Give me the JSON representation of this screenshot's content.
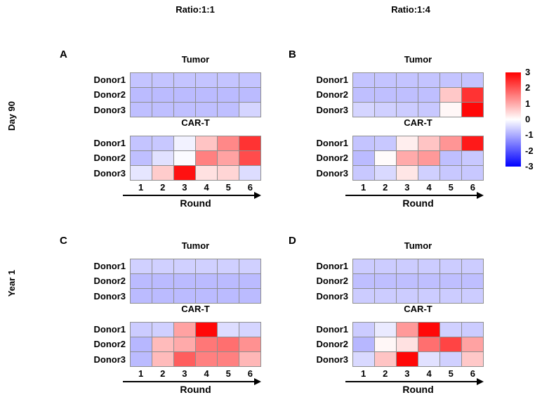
{
  "headers": {
    "col1": "Ratio:1:1",
    "col2": "Ratio:1:4"
  },
  "row_labels": {
    "top": "Day 90",
    "bottom": "Year 1"
  },
  "colorbar": {
    "ticks": [
      "3",
      "2",
      "1",
      "0",
      "-1",
      "-2",
      "-3"
    ],
    "top_color": "#ff0000",
    "mid_color": "#ffffff",
    "bottom_color": "#0000ff"
  },
  "chart_data": {
    "type": "heatmap",
    "colormap": "blue-white-red",
    "value_range": [
      -3,
      3
    ],
    "x": [
      "1",
      "2",
      "3",
      "4",
      "5",
      "6"
    ],
    "xlabel": "Round",
    "row_categories": [
      "Donor1",
      "Donor2",
      "Donor3"
    ],
    "colorbar_ticks": [
      3,
      2,
      1,
      0,
      -1,
      -2,
      -3
    ],
    "panels": [
      {
        "id": "A",
        "row_group": "Day 90",
        "col_group": "Ratio:1:1",
        "heatmaps": [
          {
            "title": "Tumor",
            "rows": [
              [
                -0.7,
                -0.7,
                -0.7,
                -0.7,
                -0.7,
                -0.7
              ],
              [
                -0.8,
                -0.8,
                -0.8,
                -0.8,
                -0.8,
                -0.8
              ],
              [
                -0.75,
                -0.75,
                -0.75,
                -0.75,
                -0.75,
                -0.5
              ]
            ]
          },
          {
            "title": "CAR-T",
            "rows": [
              [
                -0.7,
                -0.65,
                -0.15,
                0.7,
                1.4,
                2.4
              ],
              [
                -0.75,
                -0.35,
                -0.05,
                1.5,
                1.1,
                2.1
              ],
              [
                -0.3,
                0.6,
                2.8,
                0.35,
                0.5,
                -0.4
              ]
            ]
          }
        ]
      },
      {
        "id": "B",
        "row_group": "Day 90",
        "col_group": "Ratio:1:4",
        "heatmaps": [
          {
            "title": "Tumor",
            "rows": [
              [
                -0.7,
                -0.7,
                -0.7,
                -0.7,
                -0.7,
                -0.7
              ],
              [
                -0.75,
                -0.75,
                -0.75,
                -0.75,
                0.65,
                2.4
              ],
              [
                -0.5,
                -0.55,
                -0.6,
                -0.65,
                0.1,
                2.9
              ]
            ]
          },
          {
            "title": "CAR-T",
            "rows": [
              [
                -0.7,
                -0.65,
                0.2,
                0.7,
                1.25,
                2.7
              ],
              [
                -0.8,
                0.05,
                1.0,
                1.2,
                -0.75,
                -0.65
              ],
              [
                -0.65,
                -0.45,
                0.3,
                -0.55,
                -0.65,
                -0.65
              ]
            ]
          }
        ]
      },
      {
        "id": "C",
        "row_group": "Year 1",
        "col_group": "Ratio:1:1",
        "heatmaps": [
          {
            "title": "Tumor",
            "rows": [
              [
                -0.55,
                -0.55,
                -0.55,
                -0.55,
                -0.55,
                -0.55
              ],
              [
                -0.8,
                -0.8,
                -0.8,
                -0.8,
                -0.8,
                -0.8
              ],
              [
                -0.8,
                -0.8,
                -0.8,
                -0.8,
                -0.8,
                -0.8
              ]
            ]
          },
          {
            "title": "CAR-T",
            "rows": [
              [
                -0.6,
                -0.55,
                1.1,
                2.9,
                -0.4,
                -0.5
              ],
              [
                -0.85,
                0.8,
                1.0,
                1.6,
                1.7,
                1.3
              ],
              [
                -0.8,
                0.8,
                1.9,
                1.5,
                1.5,
                0.85
              ]
            ]
          }
        ]
      },
      {
        "id": "D",
        "row_group": "Year 1",
        "col_group": "Ratio:1:4",
        "heatmaps": [
          {
            "title": "Tumor",
            "rows": [
              [
                -0.6,
                -0.6,
                -0.6,
                -0.6,
                -0.6,
                -0.6
              ],
              [
                -0.75,
                -0.75,
                -0.75,
                -0.75,
                -0.75,
                -0.75
              ],
              [
                -0.6,
                -0.6,
                -0.6,
                -0.6,
                -0.6,
                -0.6
              ]
            ]
          },
          {
            "title": "CAR-T",
            "rows": [
              [
                -0.6,
                -0.25,
                1.2,
                2.9,
                -0.55,
                -0.6
              ],
              [
                -0.85,
                0.1,
                0.35,
                1.7,
                2.2,
                1.1
              ],
              [
                -0.45,
                0.7,
                2.9,
                -0.35,
                -0.55,
                0.65
              ]
            ]
          }
        ]
      }
    ]
  }
}
